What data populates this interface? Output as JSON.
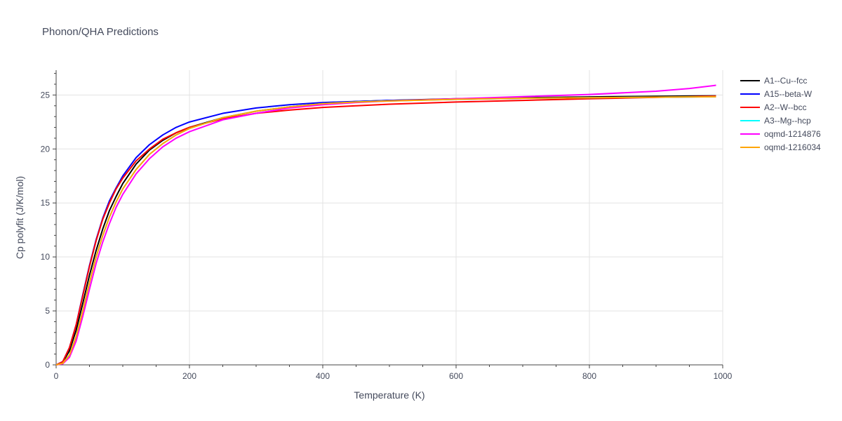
{
  "chart_data": {
    "type": "line",
    "title": "Phonon/QHA Predictions",
    "xlabel": "Temperature (K)",
    "ylabel": "Cp polyfit (J/K/mol)",
    "xlim": [
      0,
      1000
    ],
    "ylim": [
      0,
      27.3
    ],
    "xticks": [
      0,
      200,
      400,
      600,
      800,
      1000
    ],
    "yticks": [
      0,
      5,
      10,
      15,
      20,
      25
    ],
    "grid": true,
    "legend_position": "top-right",
    "x": [
      0,
      10,
      20,
      30,
      40,
      50,
      60,
      70,
      80,
      90,
      100,
      120,
      140,
      160,
      180,
      200,
      250,
      300,
      350,
      400,
      450,
      500,
      600,
      700,
      800,
      900,
      950,
      990
    ],
    "series": [
      {
        "name": "A1--Cu--fcc",
        "color": "#000000",
        "values": [
          0,
          0.25,
          1.3,
          3.2,
          5.7,
          8.3,
          10.6,
          12.6,
          14.3,
          15.6,
          16.8,
          18.6,
          19.9,
          20.8,
          21.5,
          22.0,
          22.9,
          23.5,
          23.9,
          24.2,
          24.4,
          24.5,
          24.65,
          24.75,
          24.82,
          24.88,
          24.9,
          24.92
        ]
      },
      {
        "name": "A15--beta-W",
        "color": "#0000ff",
        "values": [
          0,
          0.3,
          1.6,
          3.7,
          6.5,
          9.2,
          11.6,
          13.6,
          15.2,
          16.4,
          17.5,
          19.2,
          20.4,
          21.3,
          22.0,
          22.5,
          23.3,
          23.8,
          24.1,
          24.3,
          24.4,
          24.5,
          24.6,
          24.7,
          24.75,
          24.8,
          24.82,
          24.84
        ]
      },
      {
        "name": "A2--W--bcc",
        "color": "#ff0000",
        "values": [
          0,
          0.3,
          1.6,
          3.7,
          6.4,
          9.1,
          11.5,
          13.5,
          15.0,
          16.3,
          17.3,
          18.9,
          20.0,
          20.9,
          21.5,
          22.0,
          22.8,
          23.3,
          23.6,
          23.85,
          24.0,
          24.15,
          24.35,
          24.5,
          24.65,
          24.78,
          24.84,
          24.9
        ]
      },
      {
        "name": "A3--Mg--hcp",
        "color": "#00ffff",
        "values": [
          0,
          0.15,
          0.9,
          2.6,
          5.0,
          7.6,
          10.0,
          12.0,
          13.7,
          15.1,
          16.3,
          18.1,
          19.5,
          20.5,
          21.3,
          21.9,
          22.9,
          23.5,
          23.9,
          24.2,
          24.35,
          24.45,
          24.6,
          24.7,
          24.75,
          24.8,
          24.82,
          24.84
        ]
      },
      {
        "name": "oqmd-1214876",
        "color": "#ff00ff",
        "values": [
          0,
          0.1,
          0.7,
          2.2,
          4.5,
          7.0,
          9.4,
          11.4,
          13.1,
          14.6,
          15.8,
          17.7,
          19.1,
          20.2,
          21.0,
          21.6,
          22.7,
          23.3,
          23.8,
          24.1,
          24.3,
          24.45,
          24.65,
          24.85,
          25.05,
          25.35,
          25.6,
          25.9
        ]
      },
      {
        "name": "oqmd-1216034",
        "color": "#ffa500",
        "values": [
          0,
          0.15,
          0.9,
          2.6,
          5.0,
          7.6,
          10.0,
          12.0,
          13.7,
          15.1,
          16.3,
          18.1,
          19.5,
          20.5,
          21.3,
          21.9,
          22.9,
          23.5,
          23.9,
          24.2,
          24.35,
          24.45,
          24.6,
          24.7,
          24.75,
          24.8,
          24.82,
          24.84
        ]
      }
    ]
  }
}
